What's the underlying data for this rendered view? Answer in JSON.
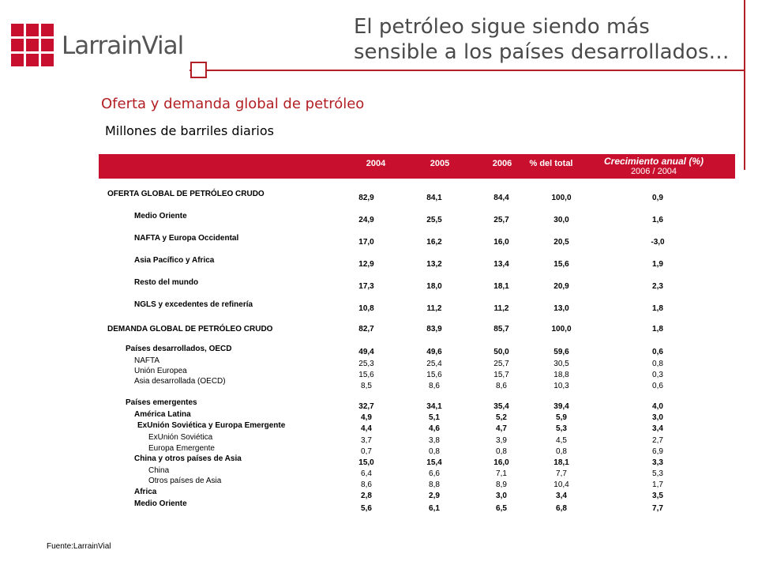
{
  "brand": {
    "logo_text": "LarrainVial",
    "color": "#c8102e"
  },
  "title_line1": "El petróleo sigue siendo más",
  "title_line2": "sensible a los países desarrollados…",
  "subtitle": "Oferta y demanda global de petróleo",
  "units": "Millones de barriles diarios",
  "table": {
    "headers": [
      "2004",
      "2005",
      "2006",
      "% del total"
    ],
    "growth_header": "Crecimiento anual (%)",
    "growth_sub": "2006 / 2004",
    "rows": [
      {
        "label": "OFERTA GLOBAL DE PETRÓLEO CRUDO",
        "values": [
          "82,9",
          "84,1",
          "84,4",
          "100,0",
          "0,9"
        ]
      },
      {
        "label": "Medio Oriente",
        "values": [
          "24,9",
          "25,5",
          "25,7",
          "30,0",
          "1,6"
        ]
      },
      {
        "label": "NAFTA y Europa Occidental",
        "values": [
          "17,0",
          "16,2",
          "16,0",
          "20,5",
          "-3,0"
        ]
      },
      {
        "label": "Asia Pacífico y Africa",
        "values": [
          "12,9",
          "13,2",
          "13,4",
          "15,6",
          "1,9"
        ]
      },
      {
        "label": "Resto del mundo",
        "values": [
          "17,3",
          "18,0",
          "18,1",
          "20,9",
          "2,3"
        ]
      },
      {
        "label": "NGLS y excedentes de refinería",
        "values": [
          "10,8",
          "11,2",
          "11,2",
          "13,0",
          "1,8"
        ]
      },
      {
        "label": "DEMANDA GLOBAL DE PETRÓLEO CRUDO",
        "values": [
          "82,7",
          "83,9",
          "85,7",
          "100,0",
          "1,8"
        ]
      },
      {
        "label": "Países desarrollados, OECD",
        "values": [
          "49,4",
          "49,6",
          "50,0",
          "59,6",
          "0,6"
        ]
      },
      {
        "label": "NAFTA",
        "values": [
          "25,3",
          "25,4",
          "25,7",
          "30,5",
          "0,8"
        ]
      },
      {
        "label": "Unión Europea",
        "values": [
          "15,6",
          "15,6",
          "15,7",
          "18,8",
          "0,3"
        ]
      },
      {
        "label": "Asia desarrollada (OECD)",
        "values": [
          "8,5",
          "8,6",
          "8,6",
          "10,3",
          "0,6"
        ]
      },
      {
        "label": "Países emergentes",
        "values": [
          "32,7",
          "34,1",
          "35,4",
          "39,4",
          "4,0"
        ]
      },
      {
        "label": "América Latina",
        "values": [
          "4,9",
          "5,1",
          "5,2",
          "5,9",
          "3,0"
        ]
      },
      {
        "label": "ExUnión Soviética y Europa Emergente",
        "values": [
          "4,4",
          "4,6",
          "4,7",
          "5,3",
          "3,4"
        ]
      },
      {
        "label": "ExUnión Soviética",
        "values": [
          "3,7",
          "3,8",
          "3,9",
          "4,5",
          "2,7"
        ]
      },
      {
        "label": "Europa Emergente",
        "values": [
          "0,7",
          "0,8",
          "0,8",
          "0,8",
          "6,9"
        ]
      },
      {
        "label": "China y otros países de Asia",
        "values": [
          "15,0",
          "15,4",
          "16,0",
          "18,1",
          "3,3"
        ]
      },
      {
        "label": "China",
        "values": [
          "6,4",
          "6,6",
          "7,1",
          "7,7",
          "5,3"
        ]
      },
      {
        "label": "Otros países de Asia",
        "values": [
          "8,6",
          "8,8",
          "8,9",
          "10,4",
          "1,7"
        ]
      },
      {
        "label": "Africa",
        "values": [
          "2,8",
          "2,9",
          "3,0",
          "3,4",
          "3,5"
        ]
      },
      {
        "label": "Medio Oriente",
        "values": [
          "5,6",
          "6,1",
          "6,5",
          "6,8",
          "7,7"
        ]
      }
    ]
  },
  "source": "Fuente:LarrainVial"
}
